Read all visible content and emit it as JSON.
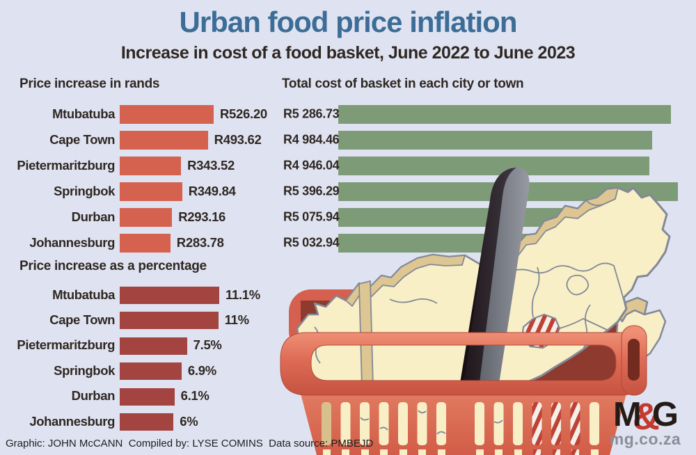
{
  "header": {
    "title": "Urban food price inflation",
    "subtitle": "Increase in cost of a food basket, June 2022 to June 2023"
  },
  "chart_data": [
    {
      "type": "bar",
      "orientation": "horizontal",
      "title": "Price increase in rands",
      "categories": [
        "Mtubatuba",
        "Cape Town",
        "Pietermaritzburg",
        "Springbok",
        "Durban",
        "Johannesburg"
      ],
      "values": [
        526.2,
        493.62,
        343.52,
        349.84,
        293.16,
        283.78
      ],
      "value_labels": [
        "R526.20",
        "R493.62",
        "R343.52",
        "R349.84",
        "R293.16",
        "R283.78"
      ],
      "bar_color": "#d5614f",
      "xlim": [
        0,
        526.2
      ],
      "grid": false,
      "value_label_position": "right-of-bar"
    },
    {
      "type": "bar",
      "orientation": "horizontal",
      "title": "Total cost of basket in each city or town",
      "categories": [
        "Mtubatuba",
        "Cape Town",
        "Pietermaritzburg",
        "Springbok",
        "Durban",
        "Johannesburg"
      ],
      "values": [
        5286.73,
        4984.46,
        4946.04,
        5396.29,
        5075.94,
        5032.94
      ],
      "value_labels": [
        "R5 286.73",
        "R4 984.46",
        "R4 946.04",
        "R5 396.29",
        "R5 075.94",
        "R5 032.94"
      ],
      "bar_color": "#7e9b78",
      "xlim": [
        0,
        5396.29
      ],
      "grid": false,
      "value_label_position": "left-of-bar"
    },
    {
      "type": "bar",
      "orientation": "horizontal",
      "title": "Price increase as a percentage",
      "categories": [
        "Mtubatuba",
        "Cape Town",
        "Pietermaritzburg",
        "Springbok",
        "Durban",
        "Johannesburg"
      ],
      "values": [
        11.1,
        11,
        7.5,
        6.9,
        6.1,
        6
      ],
      "value_labels": [
        "11.1%",
        "11%",
        "7.5%",
        "6.9%",
        "6.1%",
        "6%"
      ],
      "bar_color": "#a34440",
      "xlim": [
        0,
        11.1
      ],
      "grid": false,
      "value_label_position": "right-of-bar"
    }
  ],
  "footer": {
    "credits": "Graphic: JOHN McCANN  Compiled by: LYSE COMINS  Data source: PMBEJD"
  },
  "logo": {
    "m": "M",
    "amp": "&",
    "g": "G",
    "site": "mg.co.za"
  },
  "colors": {
    "bg": "#dfe3f1",
    "title_blue": "#3c6d96",
    "text_dark": "#2f2722",
    "rand_bar": "#d5614f",
    "total_bar": "#7e9b78",
    "percent_bar": "#a34440",
    "basket_red": "#d5604f",
    "basket_red_dark": "#c0513e",
    "basket_interior": "#8e3a2e",
    "map_cream": "#f8efc7",
    "map_tan": "#ddc691",
    "map_border": "#828896",
    "handle_black": "#1a1114",
    "handle_gray": "#787c85",
    "stripe_red": "#bf4136",
    "stripe_white": "#f4f0e7",
    "logo_dark": "#241b17",
    "logo_red": "#c43a2e",
    "logo_gray": "#8b8d96"
  }
}
